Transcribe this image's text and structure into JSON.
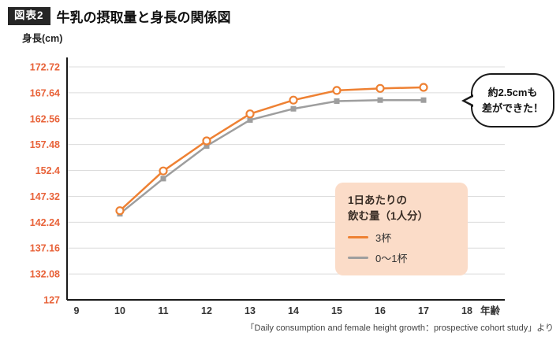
{
  "header": {
    "badge": "図表2",
    "title": "牛乳の摂取量と身長の関係図"
  },
  "chart_data": {
    "type": "line",
    "title": "牛乳の摂取量と身長の関係図",
    "ylabel": "身長(cm)",
    "xlabel": "年齢",
    "x_ticks": [
      9,
      10,
      11,
      12,
      13,
      14,
      15,
      16,
      17,
      18
    ],
    "y_ticks": [
      127,
      132.08,
      137.16,
      142.24,
      147.32,
      152.4,
      157.48,
      162.56,
      167.64,
      172.72
    ],
    "xlim": [
      9,
      18
    ],
    "ylim": [
      127,
      172.72
    ],
    "grid": "horizontal",
    "x": [
      10,
      11,
      12,
      13,
      14,
      15,
      16,
      17
    ],
    "series": [
      {
        "name": "3杯",
        "color": "#EE8133",
        "marker": "circle",
        "values": [
          144.5,
          152.3,
          158.2,
          163.5,
          166.2,
          168.1,
          168.5,
          168.7
        ]
      },
      {
        "name": "0〜1杯",
        "color": "#9E9E9E",
        "marker": "square",
        "values": [
          143.9,
          150.8,
          157.2,
          162.3,
          164.5,
          166.0,
          166.2,
          166.2
        ]
      }
    ],
    "colors": {
      "grid": "#DCDCDC",
      "axis": "#1A1A1A",
      "tick_y": "#E8633A",
      "tick_x": "#333333"
    },
    "legend": {
      "title": "1日あたりの\n飲む量（1人分）",
      "bg": "#FBDCC8",
      "position": "inside-bottom-right"
    }
  },
  "annotation": {
    "text": "約2.5cmも\n差ができた！"
  },
  "source": "「Daily consumption and female height growth：prospective cohort study」より"
}
